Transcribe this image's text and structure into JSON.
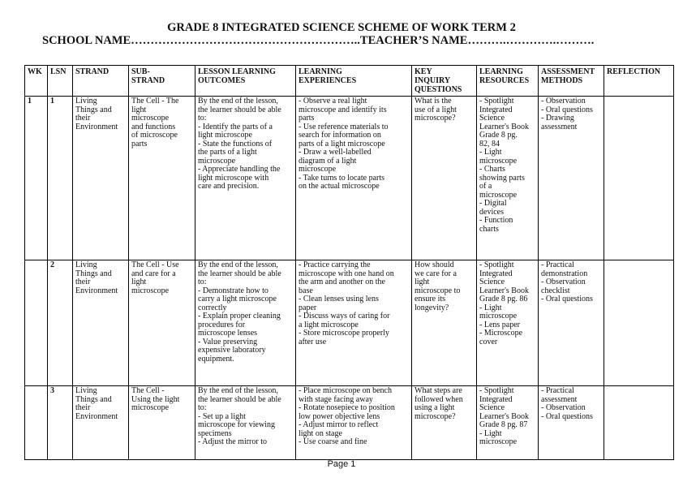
{
  "document": {
    "title": "GRADE 8 INTEGRATED SCIENCE SCHEME OF WORK TERM 2",
    "school_line": "SCHOOL NAME…………………………………………………..TEACHER’S NAME……….………….……….",
    "page_label": "Page 1"
  },
  "table": {
    "headers": [
      "WK",
      "LSN",
      "STRAND",
      "SUB-\nSTRAND",
      "LESSON LEARNING\nOUTCOMES",
      "LEARNING\nEXPERIENCES",
      "KEY\nINQUIRY\nQUESTIONS",
      "LEARNING\nRESOURCES",
      "ASSESSMENT\nMETHODS",
      "REFLECTION"
    ],
    "rows": [
      {
        "wk": "1",
        "lsn": "1",
        "strand": "Living\nThings and\ntheir\nEnvironment",
        "sub_strand": "The Cell - The\nlight\nmicroscope\nand functions\nof microscope\nparts",
        "outcomes": "By the end of the lesson,\nthe learner should be able\nto:\n- Identify the parts of a\nlight microscope\n- State the functions of\nthe parts of a light\nmicroscope\n- Appreciate handling the\nlight microscope with\ncare and precision.",
        "experiences": "- Observe a real light\nmicroscope and identify its\nparts\n- Use reference materials to\nsearch for information on\nparts of a light microscope\n- Draw a well-labelled\ndiagram of a light\nmicroscope\n- Take turns to locate parts\non the actual microscope",
        "inquiry": "What is the\nuse of a light\nmicroscope?",
        "resources": "- Spotlight\nIntegrated\nScience\nLearner's Book\nGrade 8 pg.\n82, 84\n- Light\nmicroscope\n- Charts\nshowing parts\nof a\nmicroscope\n- Digital\ndevices\n- Function\ncharts",
        "assessment": "- Observation\n- Oral questions\n- Drawing\nassessment",
        "reflection": ""
      },
      {
        "wk": "",
        "lsn": "2",
        "strand": "Living\nThings and\ntheir\nEnvironment",
        "sub_strand": "The Cell - Use\nand care for a\nlight\nmicroscope",
        "outcomes": "By the end of the lesson,\nthe learner should be able\nto:\n- Demonstrate how to\ncarry a light microscope\ncorrectly\n- Explain proper cleaning\nprocedures for\nmicroscope lenses\n- Value preserving\nexpensive laboratory\nequipment.",
        "experiences": "- Practice carrying the\nmicroscope with one hand on\nthe arm and another on the\nbase\n- Clean lenses using lens\npaper\n- Discuss ways of caring for\na light microscope\n- Store microscope properly\nafter use",
        "inquiry": "How should\nwe care for a\nlight\nmicroscope to\nensure its\nlongevity?",
        "resources": "- Spotlight\nIntegrated\nScience\nLearner's Book\nGrade 8 pg. 86\n- Light\nmicroscope\n- Lens paper\n- Microscope\ncover",
        "assessment": "- Practical\ndemonstration\n- Observation\nchecklist\n- Oral questions",
        "reflection": ""
      },
      {
        "wk": "",
        "lsn": "3",
        "strand": "Living\nThings and\ntheir\nEnvironment",
        "sub_strand": "The Cell -\nUsing the light\nmicroscope",
        "outcomes": "By the end of the lesson,\nthe learner should be able\nto:\n- Set up a light\nmicroscope for viewing\nspecimens\n- Adjust the mirror to",
        "experiences": "- Place microscope on bench\nwith stage facing away\n- Rotate nosepiece to position\nlow power objective lens\n- Adjust mirror to reflect\nlight on stage\n- Use coarse and fine",
        "inquiry": "What steps are\nfollowed when\nusing a light\nmicroscope?",
        "resources": "- Spotlight\nIntegrated\nScience\nLearner's Book\nGrade 8 pg. 87\n- Light\nmicroscope",
        "assessment": "- Practical\nassessment\n- Observation\n- Oral questions",
        "reflection": ""
      }
    ]
  }
}
